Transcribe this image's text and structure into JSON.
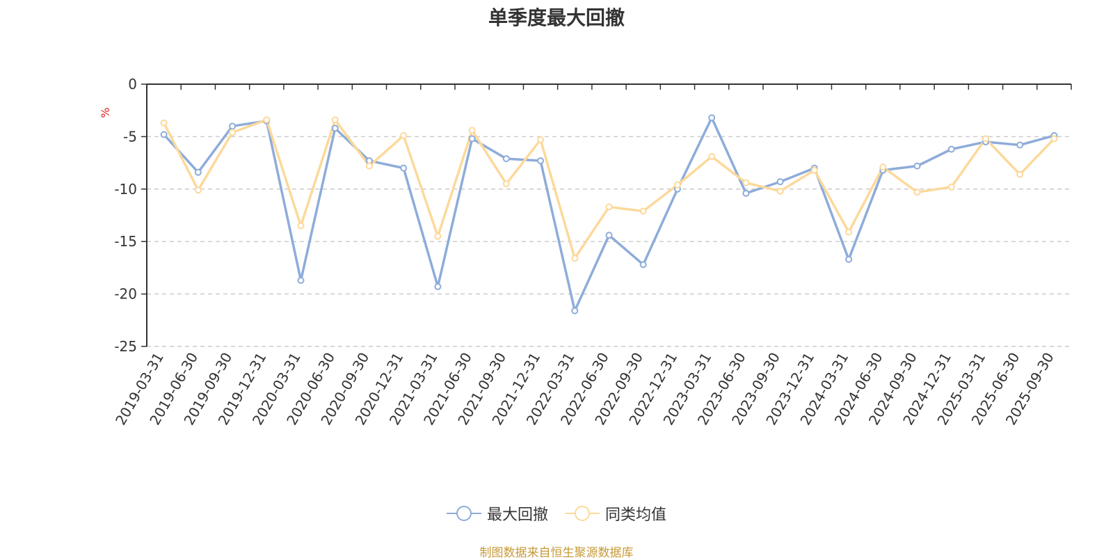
{
  "chart_data": {
    "type": "line",
    "title": "单季度最大回撤",
    "ylabel": "%",
    "ylim": [
      -25,
      0
    ],
    "yticks": [
      0,
      -5,
      -10,
      -15,
      -20,
      -25
    ],
    "grid": "horizontal dashed",
    "legend_position": "bottom",
    "categories": [
      "2019-03-31",
      "2019-06-30",
      "2019-09-30",
      "2019-12-31",
      "2020-03-31",
      "2020-06-30",
      "2020-09-30",
      "2020-12-31",
      "2021-03-31",
      "2021-06-30",
      "2021-09-30",
      "2021-12-31",
      "2022-03-31",
      "2022-06-30",
      "2022-09-30",
      "2022-12-31",
      "2023-03-31",
      "2023-06-30",
      "2023-09-30",
      "2023-12-31",
      "2024-03-31",
      "2024-06-30",
      "2024-09-30",
      "2024-12-31",
      "2025-03-31",
      "2025-06-30",
      "2025-09-30"
    ],
    "series": [
      {
        "name": "最大回撤",
        "color": "#8eacd9",
        "values": [
          -4.8,
          -8.4,
          -4.0,
          -3.5,
          -18.7,
          -4.2,
          -7.3,
          -8.0,
          -19.3,
          -5.2,
          -7.1,
          -7.3,
          -21.6,
          -14.4,
          -17.2,
          -10.0,
          -3.2,
          -10.4,
          -9.3,
          -8.0,
          -16.7,
          -8.2,
          -7.8,
          -6.2,
          -5.5,
          -5.8,
          -4.9
        ]
      },
      {
        "name": "同类均值",
        "color": "#fcd99a",
        "values": [
          -3.7,
          -10.1,
          -4.6,
          -3.4,
          -13.5,
          -3.4,
          -7.8,
          -4.9,
          -14.5,
          -4.4,
          -9.5,
          -5.3,
          -16.6,
          -11.7,
          -12.1,
          -9.6,
          -6.9,
          -9.4,
          -10.2,
          -8.2,
          -14.1,
          -7.9,
          -10.3,
          -9.8,
          -5.2,
          -8.6,
          -5.2
        ]
      }
    ]
  },
  "source_note": "制图数据来自恒生聚源数据库"
}
